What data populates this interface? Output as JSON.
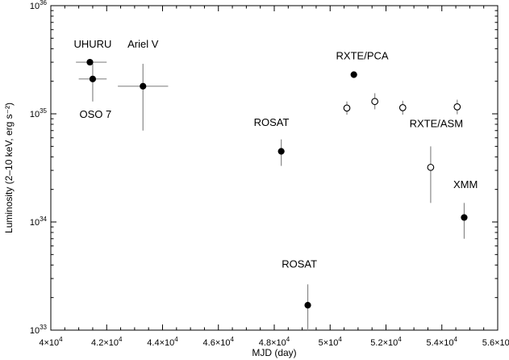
{
  "chart_data": {
    "type": "scatter",
    "xlabel": "MJD (day)",
    "ylabel": "Luminosity (2–10 keV, erg s⁻²)",
    "xlim": [
      40000,
      56000
    ],
    "ylim": [
      1e+33,
      1e+36
    ],
    "y_scale": "log",
    "grid": false,
    "x_ticks": [
      {
        "value": 40000,
        "mant": "4×10",
        "exp": "4"
      },
      {
        "value": 42000,
        "mant": "4.2×10",
        "exp": "4"
      },
      {
        "value": 44000,
        "mant": "4.4×10",
        "exp": "4"
      },
      {
        "value": 46000,
        "mant": "4.6×10",
        "exp": "4"
      },
      {
        "value": 48000,
        "mant": "4.8×10",
        "exp": "4"
      },
      {
        "value": 50000,
        "mant": "5×10",
        "exp": "4"
      },
      {
        "value": 52000,
        "mant": "5.2×10",
        "exp": "4"
      },
      {
        "value": 54000,
        "mant": "5.4×10",
        "exp": "4"
      },
      {
        "value": 56000,
        "mant": "5.6×10",
        "exp": "4"
      }
    ],
    "y_ticks": [
      {
        "value": 1e+33,
        "mant": "10",
        "exp": "33"
      },
      {
        "value": 1e+34,
        "mant": "10",
        "exp": "34"
      },
      {
        "value": 1e+35,
        "mant": "10",
        "exp": "35"
      },
      {
        "value": 1e+36,
        "mant": "10",
        "exp": "36"
      }
    ],
    "points": [
      {
        "x": 41400,
        "y": 3e+35,
        "xerr": [
          40900,
          42000
        ],
        "yerr": null,
        "filled": true
      },
      {
        "x": 41500,
        "y": 2.1e+35,
        "xerr": [
          41000,
          42000
        ],
        "yerr": [
          1.3e+35,
          2.9e+35
        ],
        "filled": true
      },
      {
        "x": 43300,
        "y": 1.8e+35,
        "xerr": [
          42400,
          44200
        ],
        "yerr": [
          7e+34,
          2.9e+35
        ],
        "filled": true
      },
      {
        "x": 48250,
        "y": 4.5e+34,
        "xerr": null,
        "yerr": [
          3.3e+34,
          5.8e+34
        ],
        "filled": true
      },
      {
        "x": 49200,
        "y": 1.7e+33,
        "xerr": null,
        "yerr": [
          1e+33,
          2.65e+33
        ],
        "filled": true
      },
      {
        "x": 50850,
        "y": 2.3e+35,
        "xerr": null,
        "yerr": [
          2.15e+35,
          2.45e+35
        ],
        "filled": true
      },
      {
        "x": 50600,
        "y": 1.13e+35,
        "xerr": null,
        "yerr": [
          9.8e+34,
          1.3e+35
        ],
        "filled": false
      },
      {
        "x": 51600,
        "y": 1.3e+35,
        "xerr": null,
        "yerr": [
          1.1e+35,
          1.55e+35
        ],
        "filled": false
      },
      {
        "x": 52600,
        "y": 1.14e+35,
        "xerr": null,
        "yerr": [
          9.8e+34,
          1.32e+35
        ],
        "filled": false
      },
      {
        "x": 53600,
        "y": 3.2e+34,
        "xerr": null,
        "yerr": [
          1.5e+34,
          5e+34
        ],
        "filled": false
      },
      {
        "x": 54550,
        "y": 1.16e+35,
        "xerr": null,
        "yerr": [
          9.9e+34,
          1.35e+35
        ],
        "filled": false
      },
      {
        "x": 54800,
        "y": 1.1e+34,
        "xerr": null,
        "yerr": [
          7e+33,
          1.5e+34
        ],
        "filled": true
      }
    ],
    "annotations": [
      {
        "text": "UHURU",
        "x": 41500,
        "y": 4.1e+35
      },
      {
        "text": "OSO 7",
        "x": 41600,
        "y": 9.2e+34
      },
      {
        "text": "Ariel V",
        "x": 43300,
        "y": 4.1e+35
      },
      {
        "text": "ROSAT",
        "x": 47900,
        "y": 7.7e+34
      },
      {
        "text": "ROSAT",
        "x": 48900,
        "y": 3.8e+33
      },
      {
        "text": "RXTE/PCA",
        "x": 51150,
        "y": 3.2e+35
      },
      {
        "text": "RXTE/ASM",
        "x": 53800,
        "y": 7.5e+34
      },
      {
        "text": "XMM",
        "x": 54850,
        "y": 2.05e+34
      }
    ]
  }
}
